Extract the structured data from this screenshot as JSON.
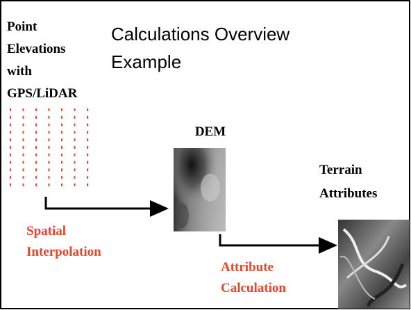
{
  "title": {
    "lines": [
      "Calculations Overview",
      "Example"
    ]
  },
  "input": {
    "lines": [
      "Point",
      "Elevations",
      "with",
      "GPS/LiDAR"
    ]
  },
  "dem": {
    "label": "DEM"
  },
  "terrain": {
    "lines": [
      "Terrain",
      "Attributes"
    ]
  },
  "step1": {
    "lines": [
      "Spatial",
      "Interpolation"
    ]
  },
  "step2": {
    "lines": [
      "Attribute",
      "Calculation"
    ]
  }
}
